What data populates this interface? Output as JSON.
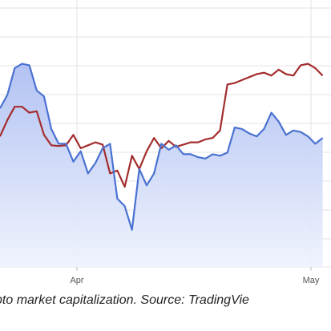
{
  "caption": "ypto market capitalization. Source: TradingVie",
  "colors": {
    "series_1": "#a32d2d",
    "series_2": "#4a72d2",
    "area_fill": "#c4d0f5",
    "grid": "#e3e3e3"
  },
  "chart_data": {
    "type": "line",
    "x_ticks": [
      "Apr",
      "May"
    ],
    "grid": true,
    "series": [
      {
        "values": [
          3.8,
          4.9,
          5.8,
          5.8,
          5.4,
          5.5,
          3.9,
          3.2,
          3.15,
          3.2,
          3.9,
          3.0,
          3.2,
          3.4,
          3.25,
          1.3,
          1.5,
          0.4,
          2.5,
          1.6,
          2.8,
          3.7,
          3.0,
          3.5,
          3.1,
          3.25,
          3.4,
          3.4,
          3.6,
          3.7,
          4.2,
          7.3,
          7.4,
          7.6,
          7.8,
          8.0,
          8.1,
          7.9,
          8.3,
          8.0,
          7.9,
          8.6,
          8.7,
          8.4,
          7.9
        ]
      },
      {
        "values": [
          5.7,
          6.6,
          8.4,
          8.7,
          8.6,
          6.9,
          6.5,
          4.3,
          3.3,
          3.3,
          2.1,
          2.8,
          1.3,
          2.0,
          3.0,
          3.3,
          -0.4,
          -0.9,
          -2.5,
          1.6,
          0.5,
          1.3,
          3.3,
          2.9,
          3.2,
          2.6,
          2.6,
          2.4,
          2.3,
          2.6,
          2.5,
          2.7,
          4.4,
          4.3,
          4.0,
          3.8,
          4.3,
          5.4,
          4.8,
          3.9,
          4.2,
          4.1,
          3.8,
          3.3,
          3.7
        ]
      }
    ]
  }
}
